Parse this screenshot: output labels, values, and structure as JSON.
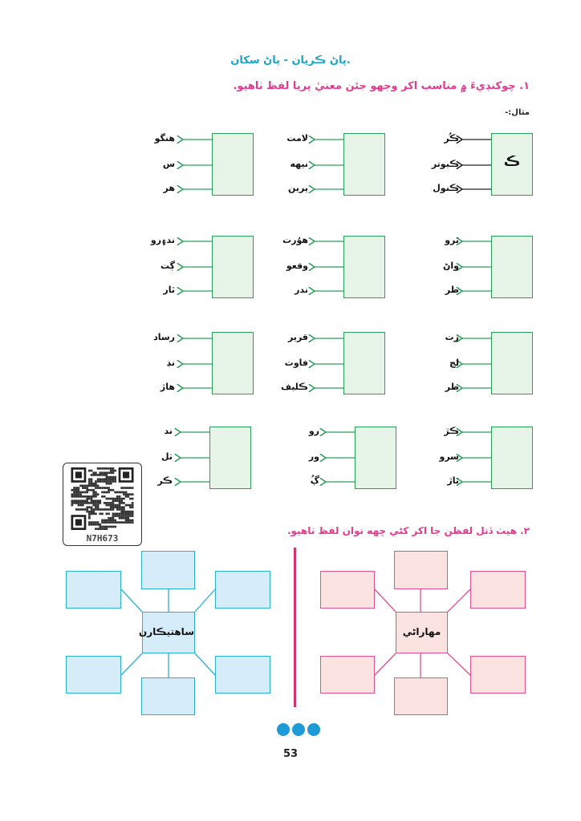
{
  "header": {
    "title": "پاڻ ڪريان - پاڻ سکان."
  },
  "exercise1": {
    "instruction": "١. چوکنڊيءَ ۾ مناسب اکر وجهو جئن معنيٰ پريا لفظ ٺاهيو.",
    "example_label": "مثال:-",
    "groups": [
      {
        "letter": "ڪ",
        "words": [
          "ڪُر",
          "ڪبوتر",
          "ڪنول"
        ]
      },
      {
        "letter": "",
        "words": [
          "لامت",
          "نيهه",
          "پرين"
        ]
      },
      {
        "letter": "",
        "words": [
          "هنگو",
          "س",
          "هر"
        ]
      },
      {
        "letter": "",
        "words": [
          "ٽرو",
          "واڻ",
          "ظر"
        ]
      },
      {
        "letter": "",
        "words": [
          "هوُرت",
          "وقعو",
          "ندر"
        ]
      },
      {
        "letter": "",
        "words": [
          "ند۽رو",
          "ڳت",
          "ٽار"
        ]
      },
      {
        "letter": "",
        "words": [
          "زت",
          "لڄ",
          "ظر"
        ]
      },
      {
        "letter": "",
        "words": [
          "قرير",
          "فاوت",
          "ڪليف"
        ]
      },
      {
        "letter": "",
        "words": [
          "رساد",
          "نڍ",
          "هاڙ"
        ]
      },
      {
        "letter": "",
        "words": [
          "ڪڙ",
          "سرو",
          "ٽاڙ"
        ]
      },
      {
        "letter": "",
        "words": [
          "رو",
          "ور",
          "ڳُ"
        ]
      },
      {
        "letter": "",
        "words": [
          "ند",
          "ٺل",
          "ڪر"
        ]
      }
    ]
  },
  "qr": {
    "code_label": "N7H673"
  },
  "exercise2": {
    "instruction": "٢. هيٺ ڏنل لفظن جا اکر کڻي ڇهه نوان لفظ ٺاهيو.",
    "left_center": "ساهتيڪارن",
    "right_center": "مهاراڻي"
  },
  "footer": {
    "page_number": "53"
  },
  "colors": {
    "title": "#1aa7c7",
    "instruction": "#e63a8f",
    "green": "#2aa05a",
    "blue": "#2ab0d4",
    "pink": "#e3508d",
    "dots": "#1e9bd7"
  }
}
